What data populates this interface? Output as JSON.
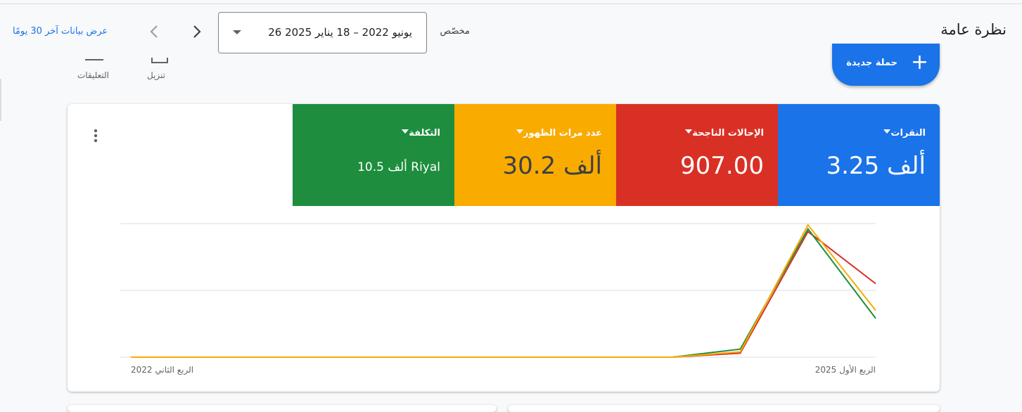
{
  "header": {
    "title": "نظرة عامة",
    "date_label": "مخصّص",
    "date_range": "26 يونيو 2022 – 18 يناير 2025",
    "last_days": "عرض بيانات آخر 30 يومًا"
  },
  "toolbar": {
    "new_campaign": "حملة جديدة",
    "download": "تنزيل",
    "comments": "التعليقات"
  },
  "metrics": [
    {
      "label": "النقرات",
      "value": "3.25 ألف",
      "color": "#1a73e8"
    },
    {
      "label": "الإحالات الناجحة",
      "value": "907.00",
      "color": "#d93025"
    },
    {
      "label": "عدد مرات الظهور",
      "value": "30.2 ألف",
      "color": "#f9ab00"
    },
    {
      "label": "التكلفة",
      "value": "10.5 ألف Riyal",
      "color": "#1e8e3e"
    }
  ],
  "chart_data": {
    "type": "line",
    "x": [
      "الربع الثاني 2022",
      null,
      null,
      null,
      null,
      null,
      null,
      null,
      null,
      null,
      null,
      "الربع الأول 2025"
    ],
    "series": [
      {
        "color": "#d93025",
        "values": [
          0,
          0,
          0,
          0,
          0,
          0,
          0,
          0,
          0,
          3,
          94,
          55
        ]
      },
      {
        "color": "#1e8e3e",
        "values": [
          0,
          0,
          0,
          0,
          0,
          0,
          0,
          0,
          0,
          6,
          96,
          29
        ]
      },
      {
        "color": "#f9ab00",
        "values": [
          0,
          0,
          0,
          0,
          0,
          0,
          0,
          0,
          0,
          4,
          99,
          35
        ]
      }
    ],
    "ylim": [
      0,
      100
    ],
    "yticks": [
      0,
      50,
      100
    ],
    "grid": true
  }
}
